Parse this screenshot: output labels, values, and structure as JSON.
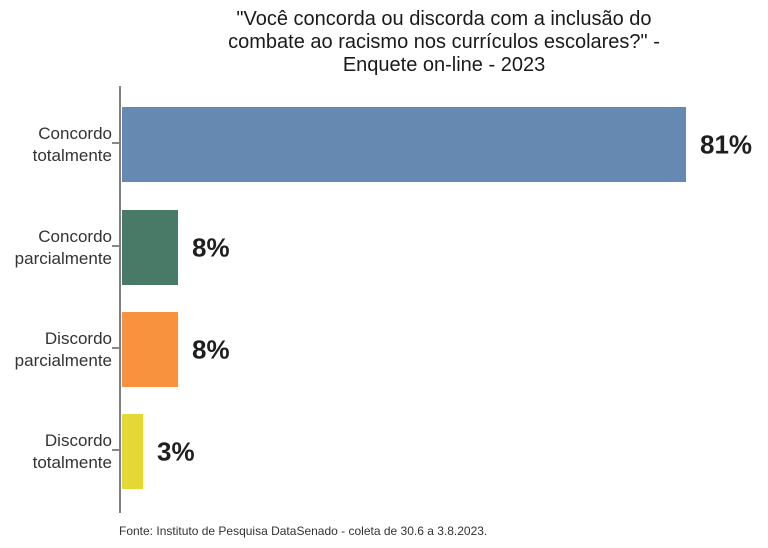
{
  "title": {
    "lines": [
      "\"Você concorda ou discorda com a inclusão do",
      "combate ao racismo nos currículos escolares?\" -",
      "Enquete on-line - 2023"
    ]
  },
  "footer": {
    "source": "Fonte: Instituto de Pesquisa DataSenado - coleta de 30.6 a 3.8.2023."
  },
  "chart_data": {
    "type": "bar",
    "orientation": "horizontal",
    "title": "\"Você concorda ou discorda com a inclusão do combate ao racismo nos currículos escolares?\" - Enquete on-line - 2023",
    "categories": [
      "Concordo totalmente",
      "Concordo parcialmente",
      "Discordo parcialmente",
      "Discordo totalmente"
    ],
    "values": [
      81,
      8,
      8,
      3
    ],
    "value_labels": [
      "81%",
      "8%",
      "8%",
      "3%"
    ],
    "bar_colors": [
      "#6589b1",
      "#487a67",
      "#f8923e",
      "#e3d836"
    ],
    "xlabel": "",
    "ylabel": "",
    "xlim": [
      0,
      92
    ],
    "grid": false,
    "legend": false,
    "axis_color": "#808080",
    "source": "Fonte: Instituto de Pesquisa DataSenado - coleta de 30.6 a 3.8.2023."
  }
}
